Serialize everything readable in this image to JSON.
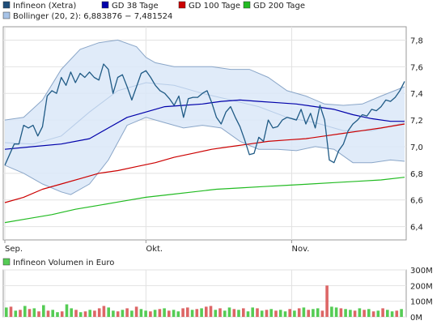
{
  "legend": {
    "items": [
      {
        "label": "Infineon (Xetra)",
        "color": "#1f4e79"
      },
      {
        "label": "GD 38 Tage",
        "color": "#0000aa"
      },
      {
        "label": "GD 100 Tage",
        "color": "#cc0000"
      },
      {
        "label": "GD 200 Tage",
        "color": "#00bb00"
      }
    ],
    "bollinger": {
      "label": "Bollinger (20, 2): 6,883876 − 7,481524",
      "color": "#a8c4e8"
    }
  },
  "chart_data": {
    "type": "line",
    "y_ticks": [
      "6,4",
      "6,6",
      "6,8",
      "7,0",
      "7,2",
      "7,4",
      "7,6",
      "7,8"
    ],
    "ylim": [
      6.3,
      7.9
    ],
    "x_labels": [
      {
        "label": "Sep.",
        "day": 0
      },
      {
        "label": "Okt.",
        "day": 30
      },
      {
        "label": "Nov.",
        "day": 61
      }
    ],
    "series": [
      {
        "name": "Infineon (Xetra)",
        "color": "#1f5a85",
        "points": [
          [
            0,
            6.86
          ],
          [
            2,
            7.02
          ],
          [
            3,
            7.02
          ],
          [
            4,
            7.16
          ],
          [
            5,
            7.14
          ],
          [
            6,
            7.16
          ],
          [
            7,
            7.08
          ],
          [
            8,
            7.15
          ],
          [
            9,
            7.38
          ],
          [
            10,
            7.42
          ],
          [
            11,
            7.4
          ],
          [
            12,
            7.52
          ],
          [
            13,
            7.46
          ],
          [
            14,
            7.56
          ],
          [
            15,
            7.48
          ],
          [
            16,
            7.55
          ],
          [
            17,
            7.52
          ],
          [
            18,
            7.56
          ],
          [
            19,
            7.52
          ],
          [
            20,
            7.5
          ],
          [
            21,
            7.62
          ],
          [
            22,
            7.58
          ],
          [
            23,
            7.4
          ],
          [
            24,
            7.52
          ],
          [
            25,
            7.54
          ],
          [
            26,
            7.45
          ],
          [
            27,
            7.35
          ],
          [
            28,
            7.45
          ],
          [
            29,
            7.55
          ],
          [
            30,
            7.57
          ],
          [
            31,
            7.52
          ],
          [
            32,
            7.46
          ],
          [
            33,
            7.42
          ],
          [
            34,
            7.4
          ],
          [
            35,
            7.36
          ],
          [
            36,
            7.31
          ],
          [
            37,
            7.38
          ],
          [
            38,
            7.22
          ],
          [
            39,
            7.36
          ],
          [
            40,
            7.37
          ],
          [
            41,
            7.37
          ],
          [
            42,
            7.4
          ],
          [
            43,
            7.42
          ],
          [
            44,
            7.33
          ],
          [
            45,
            7.22
          ],
          [
            46,
            7.17
          ],
          [
            47,
            7.26
          ],
          [
            48,
            7.3
          ],
          [
            49,
            7.22
          ],
          [
            50,
            7.15
          ],
          [
            51,
            7.05
          ],
          [
            52,
            6.94
          ],
          [
            53,
            6.95
          ],
          [
            54,
            7.07
          ],
          [
            55,
            7.04
          ],
          [
            56,
            7.2
          ],
          [
            57,
            7.14
          ],
          [
            58,
            7.15
          ],
          [
            59,
            7.2
          ],
          [
            60,
            7.22
          ],
          [
            61,
            7.21
          ],
          [
            62,
            7.2
          ],
          [
            63,
            7.28
          ],
          [
            64,
            7.17
          ],
          [
            65,
            7.25
          ],
          [
            66,
            7.14
          ],
          [
            67,
            7.31
          ],
          [
            68,
            7.2
          ],
          [
            69,
            6.9
          ],
          [
            70,
            6.88
          ],
          [
            71,
            6.97
          ],
          [
            72,
            7.02
          ],
          [
            73,
            7.12
          ],
          [
            74,
            7.17
          ],
          [
            75,
            7.2
          ],
          [
            76,
            7.24
          ],
          [
            77,
            7.23
          ],
          [
            78,
            7.28
          ],
          [
            79,
            7.27
          ],
          [
            80,
            7.3
          ],
          [
            81,
            7.35
          ],
          [
            82,
            7.34
          ],
          [
            83,
            7.37
          ],
          [
            84,
            7.42
          ],
          [
            85,
            7.49
          ]
        ]
      },
      {
        "name": "GD 38 Tage",
        "color": "#0000aa",
        "points": [
          [
            0,
            6.98
          ],
          [
            6,
            7.0
          ],
          [
            12,
            7.02
          ],
          [
            18,
            7.06
          ],
          [
            22,
            7.14
          ],
          [
            26,
            7.22
          ],
          [
            30,
            7.26
          ],
          [
            34,
            7.3
          ],
          [
            38,
            7.31
          ],
          [
            42,
            7.32
          ],
          [
            46,
            7.34
          ],
          [
            50,
            7.35
          ],
          [
            54,
            7.34
          ],
          [
            58,
            7.33
          ],
          [
            62,
            7.32
          ],
          [
            66,
            7.3
          ],
          [
            70,
            7.28
          ],
          [
            74,
            7.24
          ],
          [
            78,
            7.21
          ],
          [
            82,
            7.19
          ],
          [
            85,
            7.19
          ]
        ]
      },
      {
        "name": "GD 100 Tage",
        "color": "#cc0000",
        "points": [
          [
            0,
            6.58
          ],
          [
            4,
            6.62
          ],
          [
            8,
            6.68
          ],
          [
            12,
            6.72
          ],
          [
            16,
            6.76
          ],
          [
            20,
            6.8
          ],
          [
            24,
            6.82
          ],
          [
            28,
            6.85
          ],
          [
            32,
            6.88
          ],
          [
            36,
            6.92
          ],
          [
            40,
            6.95
          ],
          [
            44,
            6.98
          ],
          [
            48,
            7.0
          ],
          [
            52,
            7.02
          ],
          [
            56,
            7.04
          ],
          [
            60,
            7.05
          ],
          [
            64,
            7.06
          ],
          [
            68,
            7.08
          ],
          [
            72,
            7.1
          ],
          [
            76,
            7.12
          ],
          [
            80,
            7.14
          ],
          [
            85,
            7.17
          ]
        ]
      },
      {
        "name": "GD 200 Tage",
        "color": "#22bb22",
        "points": [
          [
            0,
            6.43
          ],
          [
            5,
            6.46
          ],
          [
            10,
            6.49
          ],
          [
            15,
            6.53
          ],
          [
            20,
            6.56
          ],
          [
            25,
            6.59
          ],
          [
            30,
            6.62
          ],
          [
            35,
            6.64
          ],
          [
            40,
            6.66
          ],
          [
            45,
            6.68
          ],
          [
            50,
            6.69
          ],
          [
            55,
            6.7
          ],
          [
            60,
            6.71
          ],
          [
            65,
            6.72
          ],
          [
            70,
            6.73
          ],
          [
            75,
            6.74
          ],
          [
            80,
            6.75
          ],
          [
            85,
            6.77
          ]
        ]
      }
    ],
    "bollinger": {
      "upper": [
        [
          0,
          7.2
        ],
        [
          4,
          7.22
        ],
        [
          8,
          7.35
        ],
        [
          12,
          7.58
        ],
        [
          16,
          7.73
        ],
        [
          20,
          7.78
        ],
        [
          24,
          7.8
        ],
        [
          28,
          7.75
        ],
        [
          30,
          7.67
        ],
        [
          32,
          7.63
        ],
        [
          36,
          7.6
        ],
        [
          40,
          7.6
        ],
        [
          44,
          7.6
        ],
        [
          48,
          7.58
        ],
        [
          52,
          7.58
        ],
        [
          56,
          7.52
        ],
        [
          60,
          7.42
        ],
        [
          64,
          7.38
        ],
        [
          68,
          7.32
        ],
        [
          72,
          7.31
        ],
        [
          76,
          7.32
        ],
        [
          80,
          7.38
        ],
        [
          85,
          7.45
        ]
      ],
      "lower": [
        [
          0,
          6.86
        ],
        [
          4,
          6.8
        ],
        [
          8,
          6.72
        ],
        [
          12,
          6.66
        ],
        [
          14,
          6.64
        ],
        [
          18,
          6.72
        ],
        [
          22,
          6.9
        ],
        [
          26,
          7.16
        ],
        [
          30,
          7.22
        ],
        [
          34,
          7.18
        ],
        [
          38,
          7.14
        ],
        [
          42,
          7.16
        ],
        [
          46,
          7.14
        ],
        [
          50,
          7.04
        ],
        [
          54,
          6.98
        ],
        [
          58,
          6.98
        ],
        [
          62,
          6.97
        ],
        [
          66,
          7.0
        ],
        [
          70,
          6.98
        ],
        [
          74,
          6.88
        ],
        [
          78,
          6.88
        ],
        [
          82,
          6.9
        ],
        [
          85,
          6.89
        ]
      ],
      "middle": [
        [
          0,
          7.03
        ],
        [
          6,
          7.02
        ],
        [
          12,
          7.08
        ],
        [
          18,
          7.26
        ],
        [
          24,
          7.42
        ],
        [
          30,
          7.48
        ],
        [
          36,
          7.46
        ],
        [
          42,
          7.4
        ],
        [
          48,
          7.35
        ],
        [
          54,
          7.3
        ],
        [
          60,
          7.22
        ],
        [
          66,
          7.18
        ],
        [
          72,
          7.12
        ],
        [
          78,
          7.12
        ],
        [
          85,
          7.18
        ]
      ]
    },
    "volume": {
      "title": "Infineon Volumen in Euro",
      "y_ticks": [
        "0M",
        "100M",
        "200M",
        "300M"
      ],
      "ylim": [
        0,
        300
      ],
      "up_color": "#55cc55",
      "down_color": "#dd6666",
      "bars": [
        [
          60,
          1
        ],
        [
          65,
          0
        ],
        [
          40,
          1
        ],
        [
          45,
          0
        ],
        [
          70,
          1
        ],
        [
          50,
          0
        ],
        [
          55,
          1
        ],
        [
          35,
          0
        ],
        [
          75,
          1
        ],
        [
          40,
          0
        ],
        [
          45,
          1
        ],
        [
          30,
          1
        ],
        [
          35,
          0
        ],
        [
          80,
          1
        ],
        [
          55,
          1
        ],
        [
          45,
          0
        ],
        [
          30,
          1
        ],
        [
          35,
          0
        ],
        [
          45,
          1
        ],
        [
          40,
          0
        ],
        [
          55,
          0
        ],
        [
          70,
          0
        ],
        [
          60,
          1
        ],
        [
          40,
          1
        ],
        [
          35,
          0
        ],
        [
          45,
          1
        ],
        [
          55,
          0
        ],
        [
          40,
          1
        ],
        [
          65,
          0
        ],
        [
          50,
          1
        ],
        [
          40,
          1
        ],
        [
          35,
          0
        ],
        [
          45,
          1
        ],
        [
          50,
          0
        ],
        [
          55,
          1
        ],
        [
          40,
          0
        ],
        [
          45,
          1
        ],
        [
          35,
          1
        ],
        [
          55,
          0
        ],
        [
          60,
          0
        ],
        [
          45,
          1
        ],
        [
          50,
          0
        ],
        [
          55,
          1
        ],
        [
          65,
          0
        ],
        [
          70,
          0
        ],
        [
          45,
          1
        ],
        [
          55,
          0
        ],
        [
          40,
          1
        ],
        [
          60,
          1
        ],
        [
          50,
          0
        ],
        [
          45,
          1
        ],
        [
          55,
          0
        ],
        [
          35,
          1
        ],
        [
          60,
          1
        ],
        [
          55,
          0
        ],
        [
          40,
          1
        ],
        [
          45,
          0
        ],
        [
          50,
          1
        ],
        [
          40,
          0
        ],
        [
          45,
          1
        ],
        [
          35,
          1
        ],
        [
          50,
          0
        ],
        [
          40,
          1
        ],
        [
          55,
          0
        ],
        [
          60,
          1
        ],
        [
          45,
          0
        ],
        [
          50,
          1
        ],
        [
          55,
          1
        ],
        [
          40,
          0
        ],
        [
          200,
          0
        ],
        [
          65,
          1
        ],
        [
          60,
          1
        ],
        [
          55,
          0
        ],
        [
          50,
          1
        ],
        [
          45,
          1
        ],
        [
          40,
          0
        ],
        [
          55,
          1
        ],
        [
          45,
          0
        ],
        [
          50,
          1
        ],
        [
          35,
          0
        ],
        [
          40,
          1
        ],
        [
          55,
          0
        ],
        [
          45,
          1
        ],
        [
          35,
          1
        ],
        [
          40,
          0
        ],
        [
          50,
          1
        ]
      ]
    }
  }
}
